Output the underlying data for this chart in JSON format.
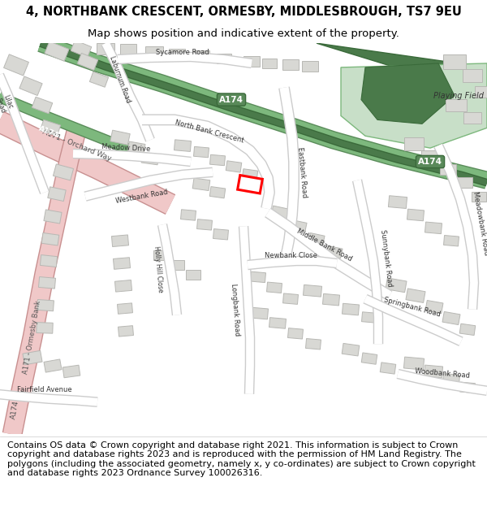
{
  "title": "4, NORTHBANK CRESCENT, ORMESBY, MIDDLESBROUGH, TS7 9EU",
  "subtitle": "Map shows position and indicative extent of the property.",
  "footer": "Contains OS data © Crown copyright and database right 2021. This information is subject to Crown copyright and database rights 2023 and is reproduced with the permission of HM Land Registry. The polygons (including the associated geometry, namely x, y co-ordinates) are subject to Crown copyright and database rights 2023 Ordnance Survey 100026316.",
  "title_fontsize": 10.5,
  "subtitle_fontsize": 9.5,
  "footer_fontsize": 8.0,
  "map_bg": "#f2f2f0",
  "building_color": "#d8d8d4",
  "building_edge": "#b8b8b4",
  "road_color": "#ffffff",
  "road_edge": "#cccccc",
  "a174_color": "#7db87d",
  "a174_edge": "#5a8c5a",
  "a174_dark": "#4a7a4a",
  "a171_color": "#f0c8c8",
  "a171_edge": "#c89090",
  "playing_field_color": "#c8dfc8",
  "playing_field_edge": "#7db87d",
  "highlight_color": "#ff0000",
  "text_color": "#333333",
  "label_green_bg": "#5a8a5a",
  "label_green_text": "#ffffff"
}
